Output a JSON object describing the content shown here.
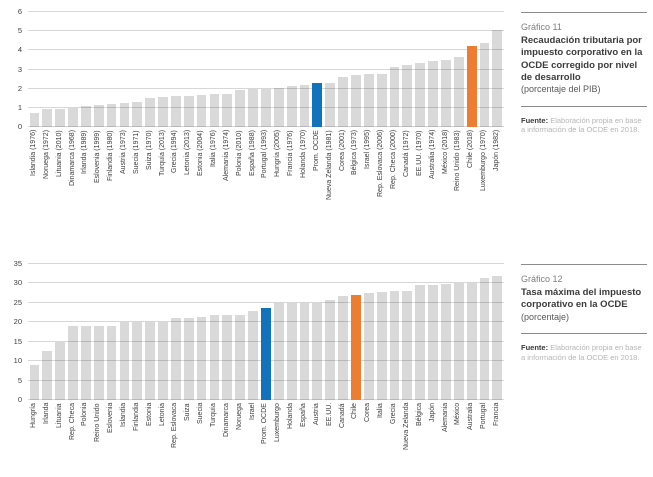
{
  "colors": {
    "bar_default": "#d9d9d9",
    "bar_blue": "#1073bb",
    "bar_orange": "#ed7d31",
    "gridline": "#d9d9d9",
    "axis_text": "#404040"
  },
  "chart_data": [
    {
      "id": "grafico-11",
      "type": "bar",
      "title": "Recaudación tributaria por impuesto corporativo en la OCDE corregido por nivel de desarrollo",
      "ylabel": "porcentaje del PIB",
      "xlabel": "",
      "ylim": [
        0,
        6
      ],
      "yticks": [
        0,
        1,
        2,
        3,
        4,
        5,
        6
      ],
      "grid": true,
      "legend": false,
      "categories": [
        "Islandia (1976)",
        "Noruega (1972)",
        "Lituania (2010)",
        "Dinamarca (1968)",
        "Irlanda (1989)",
        "Eslovenia (1999)",
        "Finlandia (1980)",
        "Austria (1973)",
        "Suecia (1971)",
        "Suiza (1970)",
        "Turquía (2013)",
        "Grecia (1994)",
        "Letonia (2013)",
        "Estonia (2004)",
        "Italia (1976)",
        "Alemania (1974)",
        "Polonia (2010)",
        "España (1988)",
        "Portugal (1993)",
        "Hungría (2005)",
        "Francia (1976)",
        "Holanda (1970)",
        "Prom. OCDE",
        "Nueva Zelanda (1981)",
        "Corea (2001)",
        "Bélgica (1973)",
        "Israel (1995)",
        "Rep. Eslovaca (2006)",
        "Rep. Checa (2000)",
        "Canadá (1972)",
        "EE.UU. (1970)",
        "Australia (1974)",
        "México (2018)",
        "Reino Unido (1983)",
        "Chile (2018)",
        "Luxemburgo (1970)",
        "Japón (1982)"
      ],
      "values": [
        0.72,
        0.93,
        0.94,
        0.97,
        1.1,
        1.15,
        1.21,
        1.27,
        1.31,
        1.5,
        1.57,
        1.61,
        1.62,
        1.67,
        1.7,
        1.72,
        1.95,
        1.96,
        1.98,
        2.05,
        2.12,
        2.18,
        2.28,
        2.3,
        2.62,
        2.71,
        2.75,
        2.76,
        3.12,
        3.26,
        3.36,
        3.43,
        3.48,
        3.66,
        4.24,
        4.37,
        5.05
      ],
      "highlight": {
        "blue": "Prom. OCDE",
        "orange": "Chile (2018)"
      },
      "panel": {
        "label": "Gráfico 11",
        "subtitle": "(porcentaje del PIB)",
        "source_label": "Fuente:",
        "source_text": "Elaboración propia en base a información de la OCDE en 2018."
      }
    },
    {
      "id": "grafico-12",
      "type": "bar",
      "title": "Tasa máxima del impuesto corporativo en la OCDE",
      "ylabel": "porcentaje",
      "xlabel": "",
      "ylim": [
        0,
        35
      ],
      "yticks": [
        0,
        5,
        10,
        15,
        20,
        25,
        30,
        35
      ],
      "grid": true,
      "legend": false,
      "categories": [
        "Hungría",
        "Irlanda",
        "Lituania",
        "Rep. Checa",
        "Polonia",
        "Reino Unido",
        "Eslovenia",
        "Islandia",
        "Finlandia",
        "Estonia",
        "Letonia",
        "Rep. Eslovaca",
        "Suiza",
        "Suecia",
        "Turquía",
        "Dinamarca",
        "Noruega",
        "Israel",
        "Prom. OCDE",
        "Luxemburgo",
        "Holanda",
        "España",
        "Austria",
        "EE.UU.",
        "Canadá",
        "Chile",
        "Corea",
        "Italia",
        "Grecia",
        "Nueva Zelanda",
        "Bélgica",
        "Japón",
        "Alemania",
        "México",
        "Australia",
        "Portugal",
        "Francia"
      ],
      "values": [
        9,
        12.5,
        15,
        19,
        19,
        19,
        19,
        20,
        20,
        20,
        20,
        21,
        21.1,
        21.4,
        22,
        22,
        22,
        23,
        23.7,
        24.9,
        25,
        25,
        25,
        25.8,
        26.8,
        27,
        27.5,
        27.8,
        28,
        28,
        29.6,
        29.7,
        29.8,
        30,
        30,
        31.5,
        32
      ],
      "highlight": {
        "blue": "Prom. OCDE",
        "orange": "Chile"
      },
      "panel": {
        "label": "Gráfico 12",
        "subtitle": "(porcentaje)",
        "source_label": "Fuente:",
        "source_text": "Elaboración propia en base a información de la OCDE en 2018."
      }
    }
  ]
}
